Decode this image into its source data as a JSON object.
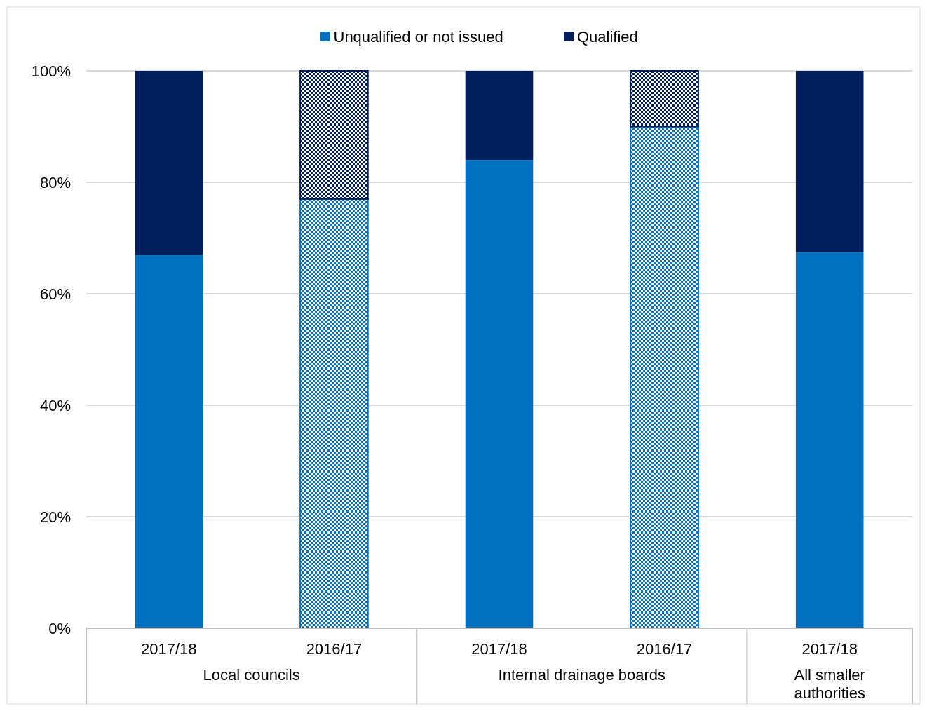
{
  "chart_data": {
    "type": "bar",
    "stacked": true,
    "categories": [
      "2017/18",
      "2016/17",
      "2017/18",
      "2016/17",
      "2017/18"
    ],
    "series": [
      {
        "name": "Unqualified or not issued",
        "color": "#0070c0",
        "values": [
          67,
          77,
          84,
          90,
          67.4
        ]
      },
      {
        "name": "Qualified",
        "color": "#001f5c",
        "values": [
          33,
          23,
          16,
          10,
          32.6
        ]
      }
    ],
    "ylim": [
      0,
      100
    ],
    "yticks": [
      {
        "value": 0,
        "label": "0%"
      },
      {
        "value": 20,
        "label": "20%"
      },
      {
        "value": 40,
        "label": "40%"
      },
      {
        "value": 60,
        "label": "60%"
      },
      {
        "value": 80,
        "label": "80%"
      },
      {
        "value": 100,
        "label": "100%"
      }
    ],
    "grid": "y",
    "legend": "top",
    "annotations": [
      "Local councils",
      "Internal drainage boards",
      "All smaller authorities"
    ]
  }
}
